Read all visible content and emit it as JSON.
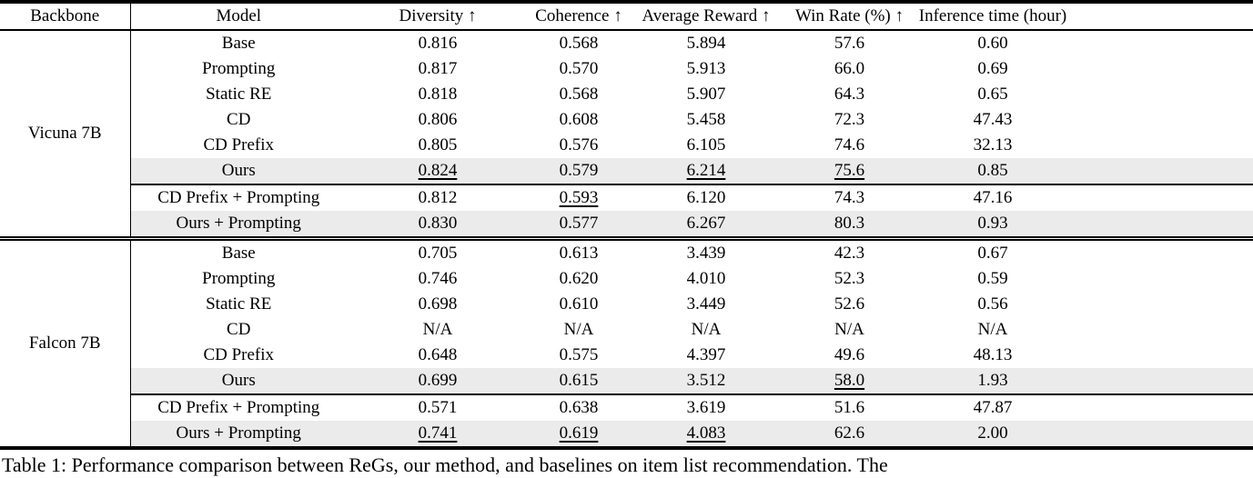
{
  "colors": {
    "background": "#ffffff",
    "text": "#000000",
    "row_shade": "#ebebeb",
    "rule": "#000000"
  },
  "table": {
    "column_headers": [
      "Backbone",
      "Model",
      "Diversity ↑",
      "Coherence ↑",
      "Average Reward ↑",
      "Win Rate (%) ↑",
      "Inference time (hour)"
    ],
    "sections": [
      {
        "backbone": "Vicuna 7B",
        "rows": [
          {
            "model": "Base",
            "values": [
              "0.816",
              "0.568",
              "5.894",
              "57.6",
              "0.60"
            ],
            "styles": [
              "",
              "",
              "",
              "",
              ""
            ],
            "shaded": false,
            "rule_below": false
          },
          {
            "model": "Prompting",
            "values": [
              "0.817",
              "0.570",
              "5.913",
              "66.0",
              "0.69"
            ],
            "styles": [
              "",
              "",
              "",
              "",
              ""
            ],
            "shaded": false,
            "rule_below": false
          },
          {
            "model": "Static RE",
            "values": [
              "0.818",
              "0.568",
              "5.907",
              "64.3",
              "0.65"
            ],
            "styles": [
              "",
              "",
              "",
              "",
              ""
            ],
            "shaded": false,
            "rule_below": false
          },
          {
            "model": "CD",
            "values": [
              "0.806",
              "0.608",
              "5.458",
              "72.3",
              "47.43"
            ],
            "styles": [
              "",
              "b",
              "",
              "",
              ""
            ],
            "shaded": false,
            "rule_below": false
          },
          {
            "model": "CD Prefix",
            "values": [
              "0.805",
              "0.576",
              "6.105",
              "74.6",
              "32.13"
            ],
            "styles": [
              "",
              "",
              "",
              "",
              ""
            ],
            "shaded": false,
            "rule_below": false
          },
          {
            "model": "Ours",
            "values": [
              "0.824",
              "0.579",
              "6.214",
              "75.6",
              "0.85"
            ],
            "styles": [
              "u",
              "",
              "u",
              "u",
              ""
            ],
            "shaded": true,
            "rule_below": true
          },
          {
            "model": "CD Prefix + Prompting",
            "values": [
              "0.812",
              "0.593",
              "6.120",
              "74.3",
              "47.16"
            ],
            "styles": [
              "",
              "u",
              "",
              "",
              ""
            ],
            "shaded": false,
            "rule_below": false
          },
          {
            "model": "Ours + Prompting",
            "values": [
              "0.830",
              "0.577",
              "6.267",
              "80.3",
              "0.93"
            ],
            "styles": [
              "b",
              "",
              "b",
              "b",
              ""
            ],
            "shaded": true,
            "rule_below": false
          }
        ]
      },
      {
        "backbone": "Falcon 7B",
        "rows": [
          {
            "model": "Base",
            "values": [
              "0.705",
              "0.613",
              "3.439",
              "42.3",
              "0.67"
            ],
            "styles": [
              "",
              "",
              "",
              "",
              ""
            ],
            "shaded": false,
            "rule_below": false
          },
          {
            "model": "Prompting",
            "values": [
              "0.746",
              "0.620",
              "4.010",
              "52.3",
              "0.59"
            ],
            "styles": [
              "b",
              "",
              "",
              "",
              ""
            ],
            "shaded": false,
            "rule_below": false
          },
          {
            "model": "Static RE",
            "values": [
              "0.698",
              "0.610",
              "3.449",
              "52.6",
              "0.56"
            ],
            "styles": [
              "",
              "",
              "",
              "",
              ""
            ],
            "shaded": false,
            "rule_below": false
          },
          {
            "model": "CD",
            "values": [
              "N/A",
              "N/A",
              "N/A",
              "N/A",
              "N/A"
            ],
            "styles": [
              "",
              "",
              "",
              "",
              ""
            ],
            "shaded": false,
            "rule_below": false
          },
          {
            "model": "CD Prefix",
            "values": [
              "0.648",
              "0.575",
              "4.397",
              "49.6",
              "48.13"
            ],
            "styles": [
              "",
              "",
              "b",
              "",
              ""
            ],
            "shaded": false,
            "rule_below": false
          },
          {
            "model": "Ours",
            "values": [
              "0.699",
              "0.615",
              "3.512",
              "58.0",
              "1.93"
            ],
            "styles": [
              "",
              "",
              "",
              "u",
              ""
            ],
            "shaded": true,
            "rule_below": true
          },
          {
            "model": "CD Prefix + Prompting",
            "values": [
              "0.571",
              "0.638",
              "3.619",
              "51.6",
              "47.87"
            ],
            "styles": [
              "",
              "b",
              "",
              "",
              ""
            ],
            "shaded": false,
            "rule_below": false
          },
          {
            "model": "Ours + Prompting",
            "values": [
              "0.741",
              "0.619",
              "4.083",
              "62.6",
              "2.00"
            ],
            "styles": [
              "u",
              "u",
              "u",
              "b",
              ""
            ],
            "shaded": true,
            "rule_below": false
          }
        ]
      }
    ]
  },
  "caption": "Table 1: Performance comparison between ReGs, our method, and baselines on item list recommendation. The"
}
